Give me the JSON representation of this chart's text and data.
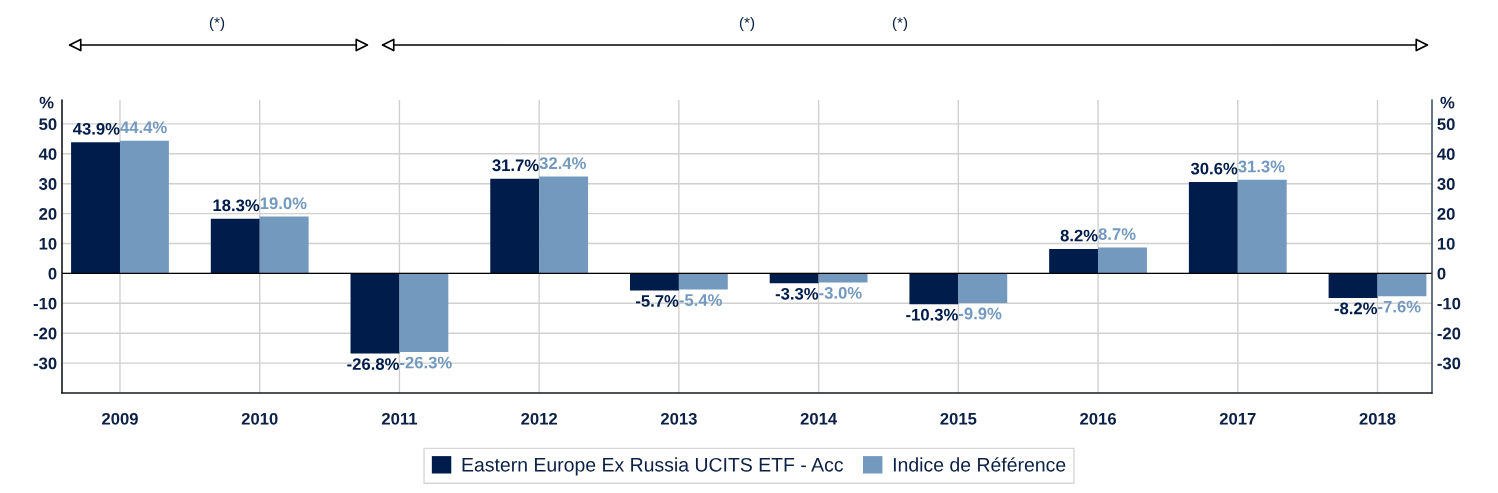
{
  "chart_data": {
    "type": "bar",
    "categories": [
      "2009",
      "2010",
      "2011",
      "2012",
      "2013",
      "2014",
      "2015",
      "2016",
      "2017",
      "2018"
    ],
    "series": [
      {
        "name": "Eastern Europe Ex Russia UCITS ETF - Acc",
        "color": "#001c4a",
        "values": [
          43.9,
          18.3,
          -26.8,
          31.7,
          -5.7,
          -3.3,
          -10.3,
          8.2,
          30.6,
          -8.2
        ],
        "value_labels": [
          "43.9%",
          "18.3%",
          "-26.8%",
          "31.7%",
          "-5.7%",
          "-3.3%",
          "-10.3%",
          "8.2%",
          "30.6%",
          "-8.2%"
        ]
      },
      {
        "name": "Indice de Référence",
        "color": "#7399bf",
        "values": [
          44.4,
          19.0,
          -26.3,
          32.4,
          -5.4,
          -3.0,
          -9.9,
          8.7,
          31.3,
          -7.6
        ],
        "value_labels": [
          "44.4%",
          "19.0%",
          "-26.3%",
          "32.4%",
          "-5.4%",
          "-3.0%",
          "-9.9%",
          "8.7%",
          "31.3%",
          "-7.6%"
        ]
      }
    ],
    "ylabel": "%",
    "y2label": "%",
    "ylim": [
      -40,
      58
    ],
    "yticks": [
      -30,
      -20,
      -10,
      0,
      10,
      20,
      30,
      40,
      50
    ],
    "y2lim": [
      -40,
      58
    ],
    "y2ticks": [
      -30,
      -20,
      -10,
      0,
      10,
      20,
      30,
      40,
      50
    ],
    "annotations": [
      "(*)",
      "(*)",
      "(*)"
    ],
    "grid": true,
    "legend": "bottom"
  }
}
